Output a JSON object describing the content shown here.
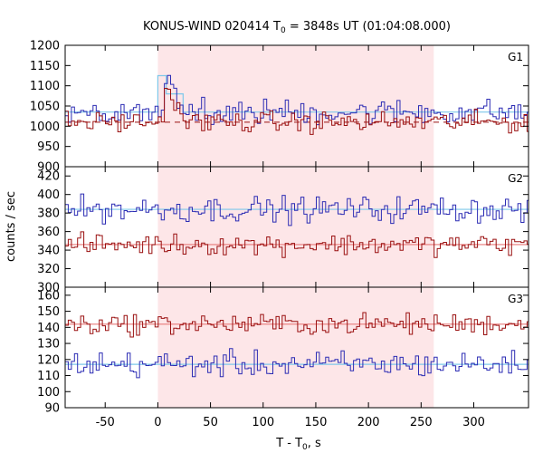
{
  "chart_data": {
    "type": "line",
    "title": {
      "pre": "KONUS-WIND 020414 T",
      "sub": "0",
      "post": " = 3848s UT (01:04:08.000)"
    },
    "xlabel": {
      "pre": "T - T",
      "sub": "0",
      "post": ", s"
    },
    "ylabel": "counts / sec",
    "xlim": [
      -88,
      352
    ],
    "xticks": [
      -50,
      0,
      50,
      100,
      150,
      200,
      250,
      300
    ],
    "x_tick_labels": [
      "-50",
      "0",
      "50",
      "100",
      "150",
      "200",
      "250",
      "300"
    ],
    "highlight_interval": [
      0,
      262
    ],
    "colors": {
      "blue": "#2c2cb4",
      "red": "#9a1010",
      "fit": "#7ec8ea",
      "red_fit": "#e87a7a",
      "shade": "#fde6e8"
    },
    "panels": [
      {
        "name": "G1",
        "ylim": [
          900,
          1200
        ],
        "yticks": [
          900,
          950,
          1000,
          1050,
          1100,
          1150,
          1200
        ],
        "y_tick_labels": [
          "900",
          "950",
          "1000",
          "1050",
          "1100",
          "1150",
          "1200"
        ],
        "blue_background": 1035,
        "blue_burst_peak": 1135,
        "blue_fit_peak": 1125,
        "red_background": 1010,
        "red_burst_peak": 1090,
        "red_fit_style": "dashed"
      },
      {
        "name": "G2",
        "ylim": [
          300,
          430
        ],
        "yticks": [
          300,
          320,
          340,
          360,
          380,
          400,
          420
        ],
        "y_tick_labels": [
          "300",
          "320",
          "340",
          "360",
          "380",
          "400",
          "420"
        ],
        "blue_background": 384,
        "red_background": 346
      },
      {
        "name": "G3",
        "ylim": [
          90,
          165
        ],
        "yticks": [
          90,
          100,
          110,
          120,
          130,
          140,
          150,
          160
        ],
        "y_tick_labels": [
          "90",
          "100",
          "110",
          "120",
          "130",
          "140",
          "150",
          "160"
        ],
        "blue_background": 117,
        "red_background": 142
      }
    ]
  }
}
